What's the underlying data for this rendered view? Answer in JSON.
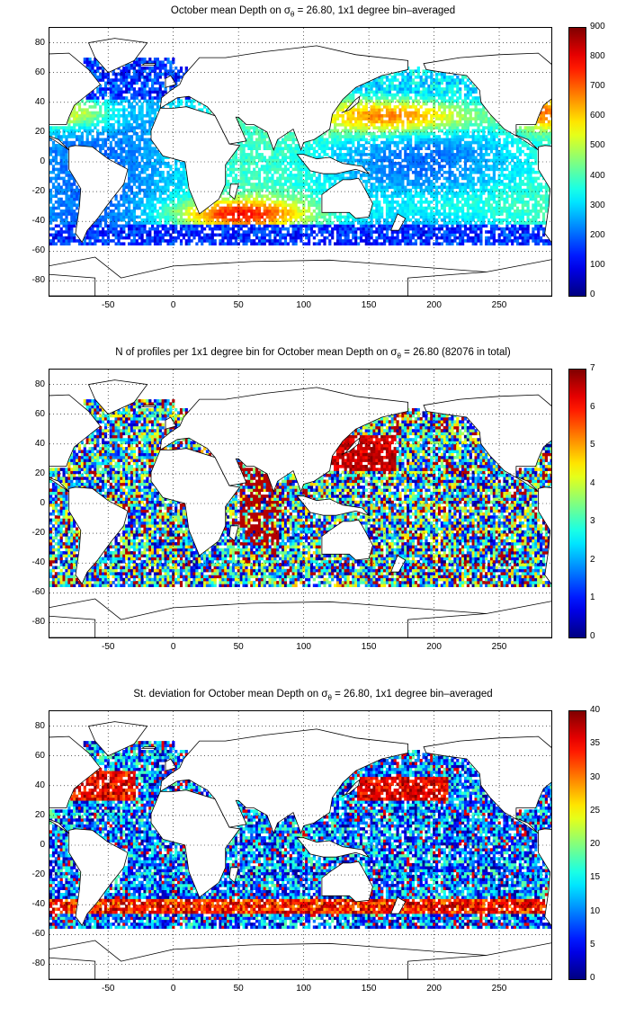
{
  "panels": [
    {
      "id": "depth",
      "title_pre": "October mean Depth on σ",
      "title_sub": "θ",
      "title_post": " = 26.80, 1x1 degree bin–averaged",
      "colorbar": {
        "min": 0,
        "max": 900,
        "ticks": [
          "900",
          "800",
          "700",
          "600",
          "500",
          "400",
          "300",
          "200",
          "100",
          "0"
        ]
      }
    },
    {
      "id": "nprofiles",
      "title_pre": "N of profiles per 1x1 degree bin for October mean Depth on σ",
      "title_sub": "θ",
      "title_post": " = 26.80 (82076 in total)",
      "colorbar": {
        "min": 0,
        "max": 7,
        "ticks": [
          "7",
          "6",
          "5",
          "4",
          "3",
          "2",
          "1",
          "0"
        ]
      }
    },
    {
      "id": "stdev",
      "title_pre": "St. deviation for October mean Depth on σ",
      "title_sub": "θ",
      "title_post": " = 26.80, 1x1 degree bin–averaged",
      "colorbar": {
        "min": 0,
        "max": 40,
        "ticks": [
          "40",
          "35",
          "30",
          "25",
          "20",
          "15",
          "10",
          "5",
          "0"
        ]
      }
    }
  ],
  "axes": {
    "xticks": [
      "-50",
      "0",
      "50",
      "100",
      "150",
      "200",
      "250"
    ],
    "yticks": [
      "80",
      "60",
      "40",
      "20",
      "0",
      "-20",
      "-40",
      "-60",
      "-80"
    ],
    "xlim": [
      -95,
      290
    ],
    "ylim": [
      -90,
      90
    ],
    "grid": "dotted"
  },
  "colormap": "jet",
  "land_color": "#ffffff",
  "coast_color": "#000000"
}
